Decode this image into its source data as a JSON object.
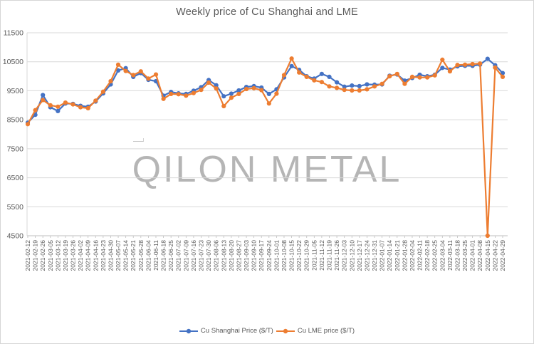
{
  "title": "Weekly price of Cu Shanghai and LME",
  "watermark": "QILON METAL",
  "colors": {
    "shanghai": "#4472C4",
    "lme": "#ED7D31",
    "grid": "#D9D9D9",
    "axis_line": "#BFBFBF",
    "axis_text": "#595959",
    "title_text": "#595959",
    "watermark_text": "#A9A9A9",
    "border": "#D6D6D6"
  },
  "legend": [
    {
      "label": "Cu Shanghai Price ($/T)",
      "series": "shanghai"
    },
    {
      "label": "Cu LME price ($/T)",
      "series": "lme"
    }
  ],
  "chart_data": {
    "type": "line",
    "title": "Weekly price of Cu Shanghai and LME",
    "xlabel": "",
    "ylabel": "",
    "ylim": [
      4500,
      11500
    ],
    "ytick_step": 1000,
    "yticks": [
      4500,
      5500,
      6500,
      7500,
      8500,
      9500,
      10500,
      11500
    ],
    "grid": true,
    "legend_position": "bottom",
    "x": [
      "2021-02-12",
      "2021-02-19",
      "2021-02-26",
      "2021-03-05",
      "2021-03-12",
      "2021-03-19",
      "2021-03-26",
      "2021-04-02",
      "2021-04-09",
      "2021-04-16",
      "2021-04-23",
      "2021-04-30",
      "2021-05-07",
      "2021-05-14",
      "2021-05-21",
      "2021-05-28",
      "2021-06-04",
      "2021-06-11",
      "2021-06-18",
      "2021-06-25",
      "2021-07-02",
      "2021-07-09",
      "2021-07-16",
      "2021-07-23",
      "2021-07-30",
      "2021-08-06",
      "2021-08-13",
      "2021-08-20",
      "2021-08-27",
      "2021-09-03",
      "2021-09-10",
      "2021-09-17",
      "2021-09-24",
      "2021-10-01",
      "2021-10-08",
      "2021-10-15",
      "2021-10-22",
      "2021-10-29",
      "2021-11-05",
      "2021-11-12",
      "2021-11-19",
      "2021-11-26",
      "2021-12-03",
      "2021-12-10",
      "2021-12-17",
      "2021-12-24",
      "2021-12-31",
      "2022-01-07",
      "2022-01-14",
      "2022-01-21",
      "2022-01-28",
      "2022-02-04",
      "2022-02-11",
      "2022-02-18",
      "2022-02-25",
      "2022-03-04",
      "2022-03-11",
      "2022-03-18",
      "2022-03-25",
      "2022-04-01",
      "2022-04-08",
      "2022-04-15",
      "2022-04-22",
      "2022-04-29"
    ],
    "series": [
      {
        "name": "Cu Shanghai Price ($/T)",
        "color": "#4472C4",
        "values": [
          8400,
          8670,
          9350,
          8930,
          8800,
          9060,
          9050,
          8980,
          8950,
          9130,
          9410,
          9720,
          10200,
          10280,
          9980,
          10110,
          9880,
          9830,
          9330,
          9460,
          9410,
          9390,
          9500,
          9620,
          9870,
          9690,
          9310,
          9400,
          9510,
          9630,
          9660,
          9610,
          9390,
          9550,
          9960,
          10350,
          10220,
          10000,
          9920,
          10080,
          9980,
          9790,
          9640,
          9680,
          9660,
          9720,
          9710,
          9720,
          10020,
          10060,
          9850,
          9940,
          10050,
          10000,
          10050,
          10290,
          10230,
          10340,
          10360,
          10360,
          10400,
          10600,
          10380,
          10110
        ]
      },
      {
        "name": "Cu LME price ($/T)",
        "color": "#ED7D31",
        "values": [
          8350,
          8830,
          9180,
          9000,
          8950,
          9090,
          9030,
          8930,
          8900,
          9160,
          9470,
          9830,
          10400,
          10180,
          10040,
          10170,
          9920,
          10060,
          9220,
          9390,
          9380,
          9330,
          9420,
          9530,
          9780,
          9580,
          8970,
          9260,
          9390,
          9560,
          9590,
          9520,
          9060,
          9400,
          10040,
          10610,
          10130,
          9980,
          9860,
          9800,
          9650,
          9600,
          9530,
          9510,
          9510,
          9550,
          9650,
          9740,
          10000,
          10080,
          9740,
          9980,
          9960,
          9960,
          10030,
          10570,
          10170,
          10390,
          10400,
          10420,
          10440,
          4500,
          10300,
          9980
        ]
      }
    ]
  }
}
